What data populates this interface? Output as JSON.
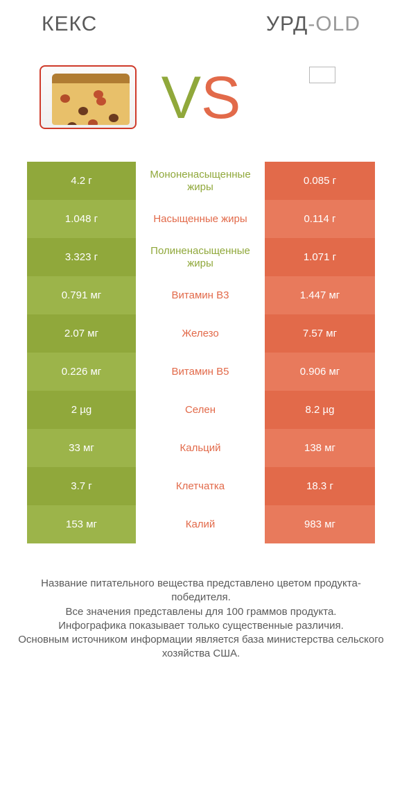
{
  "header": {
    "left_title": "КЕКС",
    "right_title_cyr": "УРД",
    "right_title_lat": "-OLD"
  },
  "vs": {
    "v": "V",
    "s": "S"
  },
  "colors": {
    "green": "#90a83b",
    "green_light": "#9cb44a",
    "orange": "#e26a4a",
    "orange_light": "#e87a5c",
    "text_gray": "#5a5a5a",
    "background": "#ffffff"
  },
  "table": {
    "rows": [
      {
        "left": "4.2 г",
        "mid": "Мононенасыщенные жиры",
        "mid_winner": "green",
        "right": "0.085 г"
      },
      {
        "left": "1.048 г",
        "mid": "Насыщенные жиры",
        "mid_winner": "orange",
        "right": "0.114 г"
      },
      {
        "left": "3.323 г",
        "mid": "Полиненасыщенные жиры",
        "mid_winner": "green",
        "right": "1.071 г"
      },
      {
        "left": "0.791 мг",
        "mid": "Витамин B3",
        "mid_winner": "orange",
        "right": "1.447 мг"
      },
      {
        "left": "2.07 мг",
        "mid": "Железо",
        "mid_winner": "orange",
        "right": "7.57 мг"
      },
      {
        "left": "0.226 мг",
        "mid": "Витамин B5",
        "mid_winner": "orange",
        "right": "0.906 мг"
      },
      {
        "left": "2 µg",
        "mid": "Селен",
        "mid_winner": "orange",
        "right": "8.2 µg"
      },
      {
        "left": "33 мг",
        "mid": "Кальций",
        "mid_winner": "orange",
        "right": "138 мг"
      },
      {
        "left": "3.7 г",
        "mid": "Клетчатка",
        "mid_winner": "orange",
        "right": "18.3 г"
      },
      {
        "left": "153 мг",
        "mid": "Калий",
        "mid_winner": "orange",
        "right": "983 мг"
      }
    ]
  },
  "footer": {
    "line1": "Название питательного вещества представлено цветом продукта-победителя.",
    "line2": "Все значения представлены для 100 граммов продукта.",
    "line3": "Инфографика показывает только существенные различия.",
    "line4": "Основным источником информации является база министерства сельского хозяйства США."
  }
}
